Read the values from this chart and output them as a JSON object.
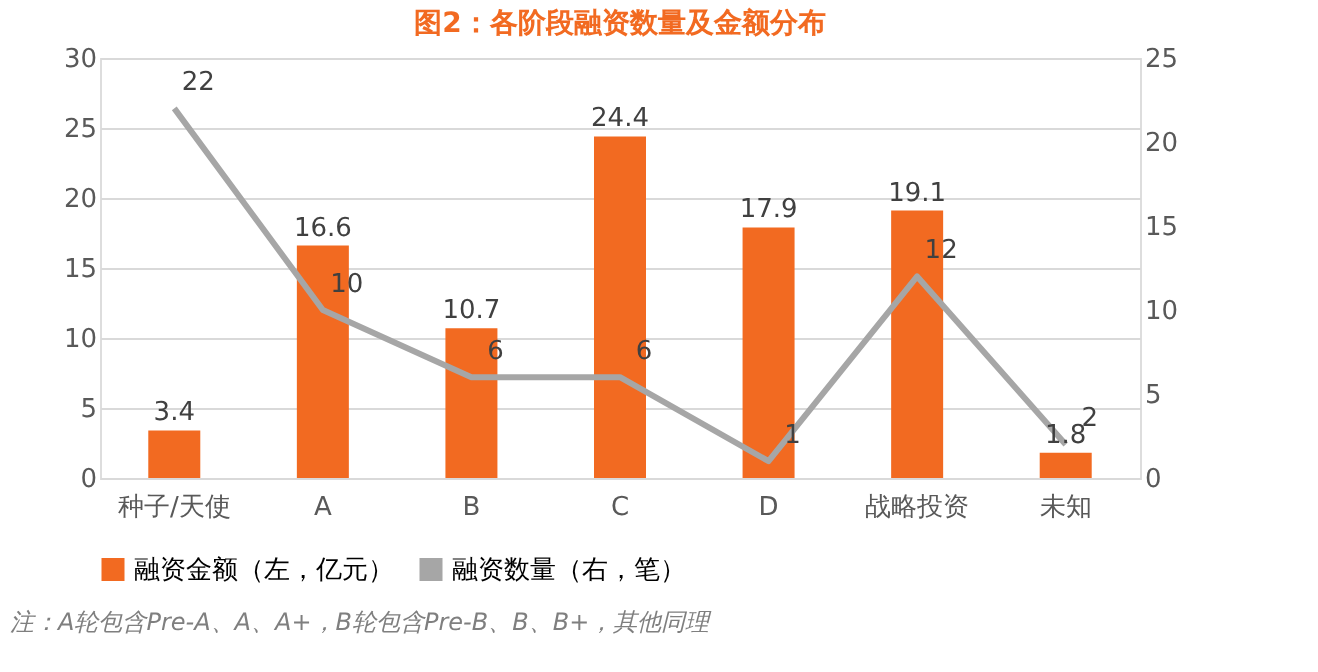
{
  "chart_data": {
    "type": "bar",
    "title": "图2：各阶段融资数量及金额分布",
    "categories": [
      "种子/天使",
      "A",
      "B",
      "C",
      "D",
      "战略投资",
      "未知"
    ],
    "series": [
      {
        "name": "融资金额（左，亿元）",
        "color": "#f26a21",
        "values": [
          3.4,
          16.6,
          10.7,
          24.4,
          17.9,
          19.1,
          1.8
        ]
      },
      {
        "name": "融资数量（右，笔）",
        "type": "line",
        "axis": "y2",
        "color": "#a6a6a6",
        "values": [
          22,
          10,
          6,
          6,
          1,
          12,
          2
        ]
      }
    ],
    "ylim": [
      0,
      30
    ],
    "yticks": [
      0,
      5,
      10,
      15,
      20,
      25,
      30
    ],
    "y2lim": [
      0,
      25
    ],
    "y2ticks": [
      0,
      5,
      10,
      15,
      20,
      25
    ],
    "data_labels": true,
    "grid": "y",
    "legend": "bottom",
    "marker": "none",
    "annotations": [
      "注：A轮包含Pre-A、A、A+，B轮包含Pre-B、B、B+，其他同理"
    ]
  }
}
